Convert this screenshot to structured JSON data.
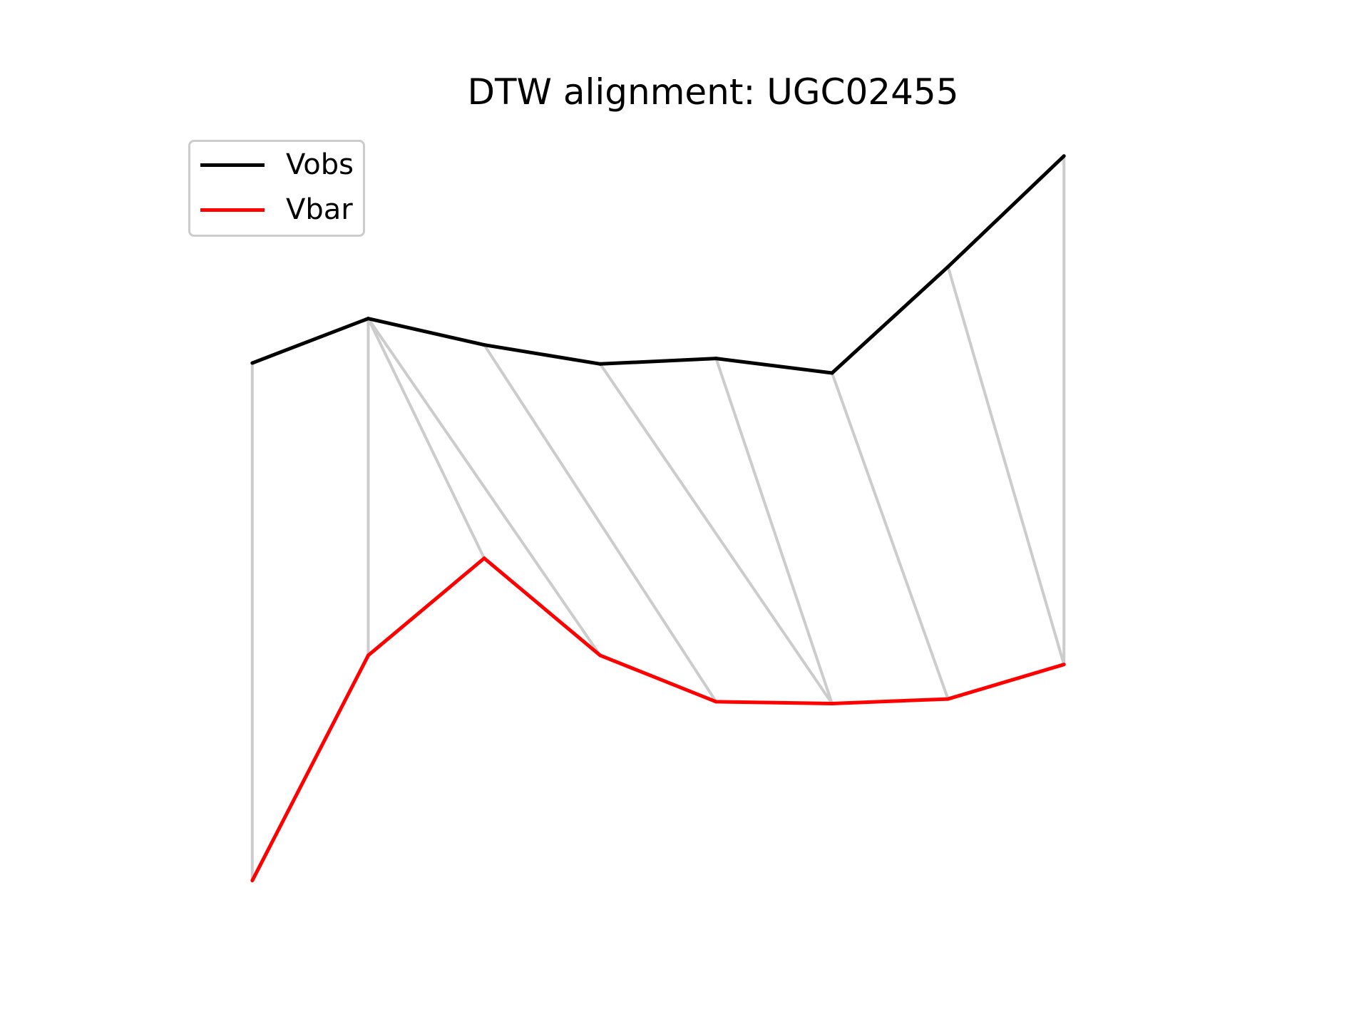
{
  "chart_data": {
    "type": "line",
    "title": "DTW alignment: UGC02455",
    "xlabel": "",
    "ylabel": "",
    "axes_visible": false,
    "grid": false,
    "legend_position": "top-left",
    "x": [
      0,
      1,
      2,
      3,
      4,
      5,
      6,
      7
    ],
    "series": [
      {
        "name": "Vobs",
        "color": "#000000",
        "values": [
          47.7,
          52.6,
          49.7,
          47.6,
          48.2,
          46.6,
          58.3,
          70.5
        ]
      },
      {
        "name": "Vbar",
        "color": "#ff0000",
        "values": [
          -9.3,
          15.5,
          26.2,
          15.5,
          10.4,
          10.2,
          10.7,
          14.5
        ]
      }
    ],
    "alignment": {
      "color": "#cccccc",
      "pairs": [
        [
          0,
          0
        ],
        [
          1,
          1
        ],
        [
          1,
          2
        ],
        [
          1,
          3
        ],
        [
          2,
          4
        ],
        [
          3,
          5
        ],
        [
          4,
          5
        ],
        [
          5,
          6
        ],
        [
          6,
          7
        ],
        [
          7,
          7
        ]
      ]
    },
    "xlim": [
      -0.7,
      8.45
    ],
    "ylim": [
      -16,
      77
    ]
  }
}
